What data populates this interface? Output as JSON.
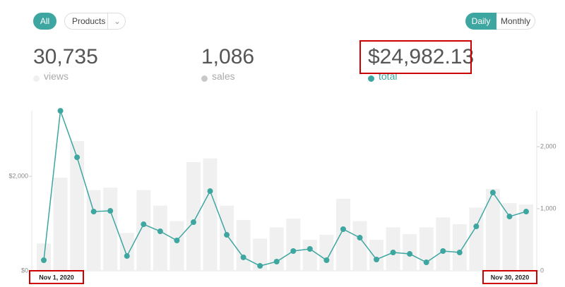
{
  "toolbar": {
    "filter": "All",
    "dropdown": "Products",
    "periods": [
      "Daily",
      "Monthly"
    ]
  },
  "stats": [
    {
      "value": "30,735"
    },
    {
      "value": "1,086",
      "label": "sales",
      "color": "#c8c8c8"
    },
    {
      "value": "$24,982.13"
    }
  ],
  "chart_data": {
    "type": "bar",
    "categories": [
      "Nov 1, 2020",
      null,
      null,
      null,
      null,
      null,
      null,
      null,
      null,
      null,
      null,
      null,
      null,
      null,
      null,
      null,
      null,
      null,
      null,
      null,
      null,
      null,
      null,
      null,
      null,
      null,
      null,
      null,
      null,
      "Nov 30, 2020"
    ],
    "series": [
      {
        "name": "views",
        "color": "#f0f0f0",
        "type": "bar",
        "axis": "y2",
        "values": [
          440,
          1500,
          2090,
          1300,
          1340,
          610,
          1300,
          1050,
          800,
          1750,
          1810,
          1050,
          820,
          520,
          700,
          840,
          500,
          580,
          1160,
          800,
          500,
          700,
          590,
          700,
          860,
          750,
          1020,
          1320,
          1090,
          1070
        ]
      },
      {
        "name": "total",
        "color": "#3ea6a0",
        "type": "line",
        "values": [
          224,
          3388,
          2403,
          1254,
          1269,
          313,
          985,
          836,
          642,
          1030,
          1687,
          761,
          284,
          104,
          194,
          418,
          463,
          224,
          881,
          701,
          239,
          388,
          358,
          179,
          418,
          388,
          940,
          1657,
          1149,
          1254
        ]
      }
    ],
    "ylim": [
      0,
      3390
    ],
    "yticks": [
      {
        "value": 0,
        "label": "$0"
      },
      {
        "value": 2000,
        "label": "$2,000"
      }
    ],
    "y2lim": [
      0,
      2580
    ],
    "y2ticks": [
      0,
      {
        "value": 1000,
        "label": "1,000"
      },
      {
        "value": 2000,
        "label": "2,000"
      }
    ],
    "grid": false
  }
}
